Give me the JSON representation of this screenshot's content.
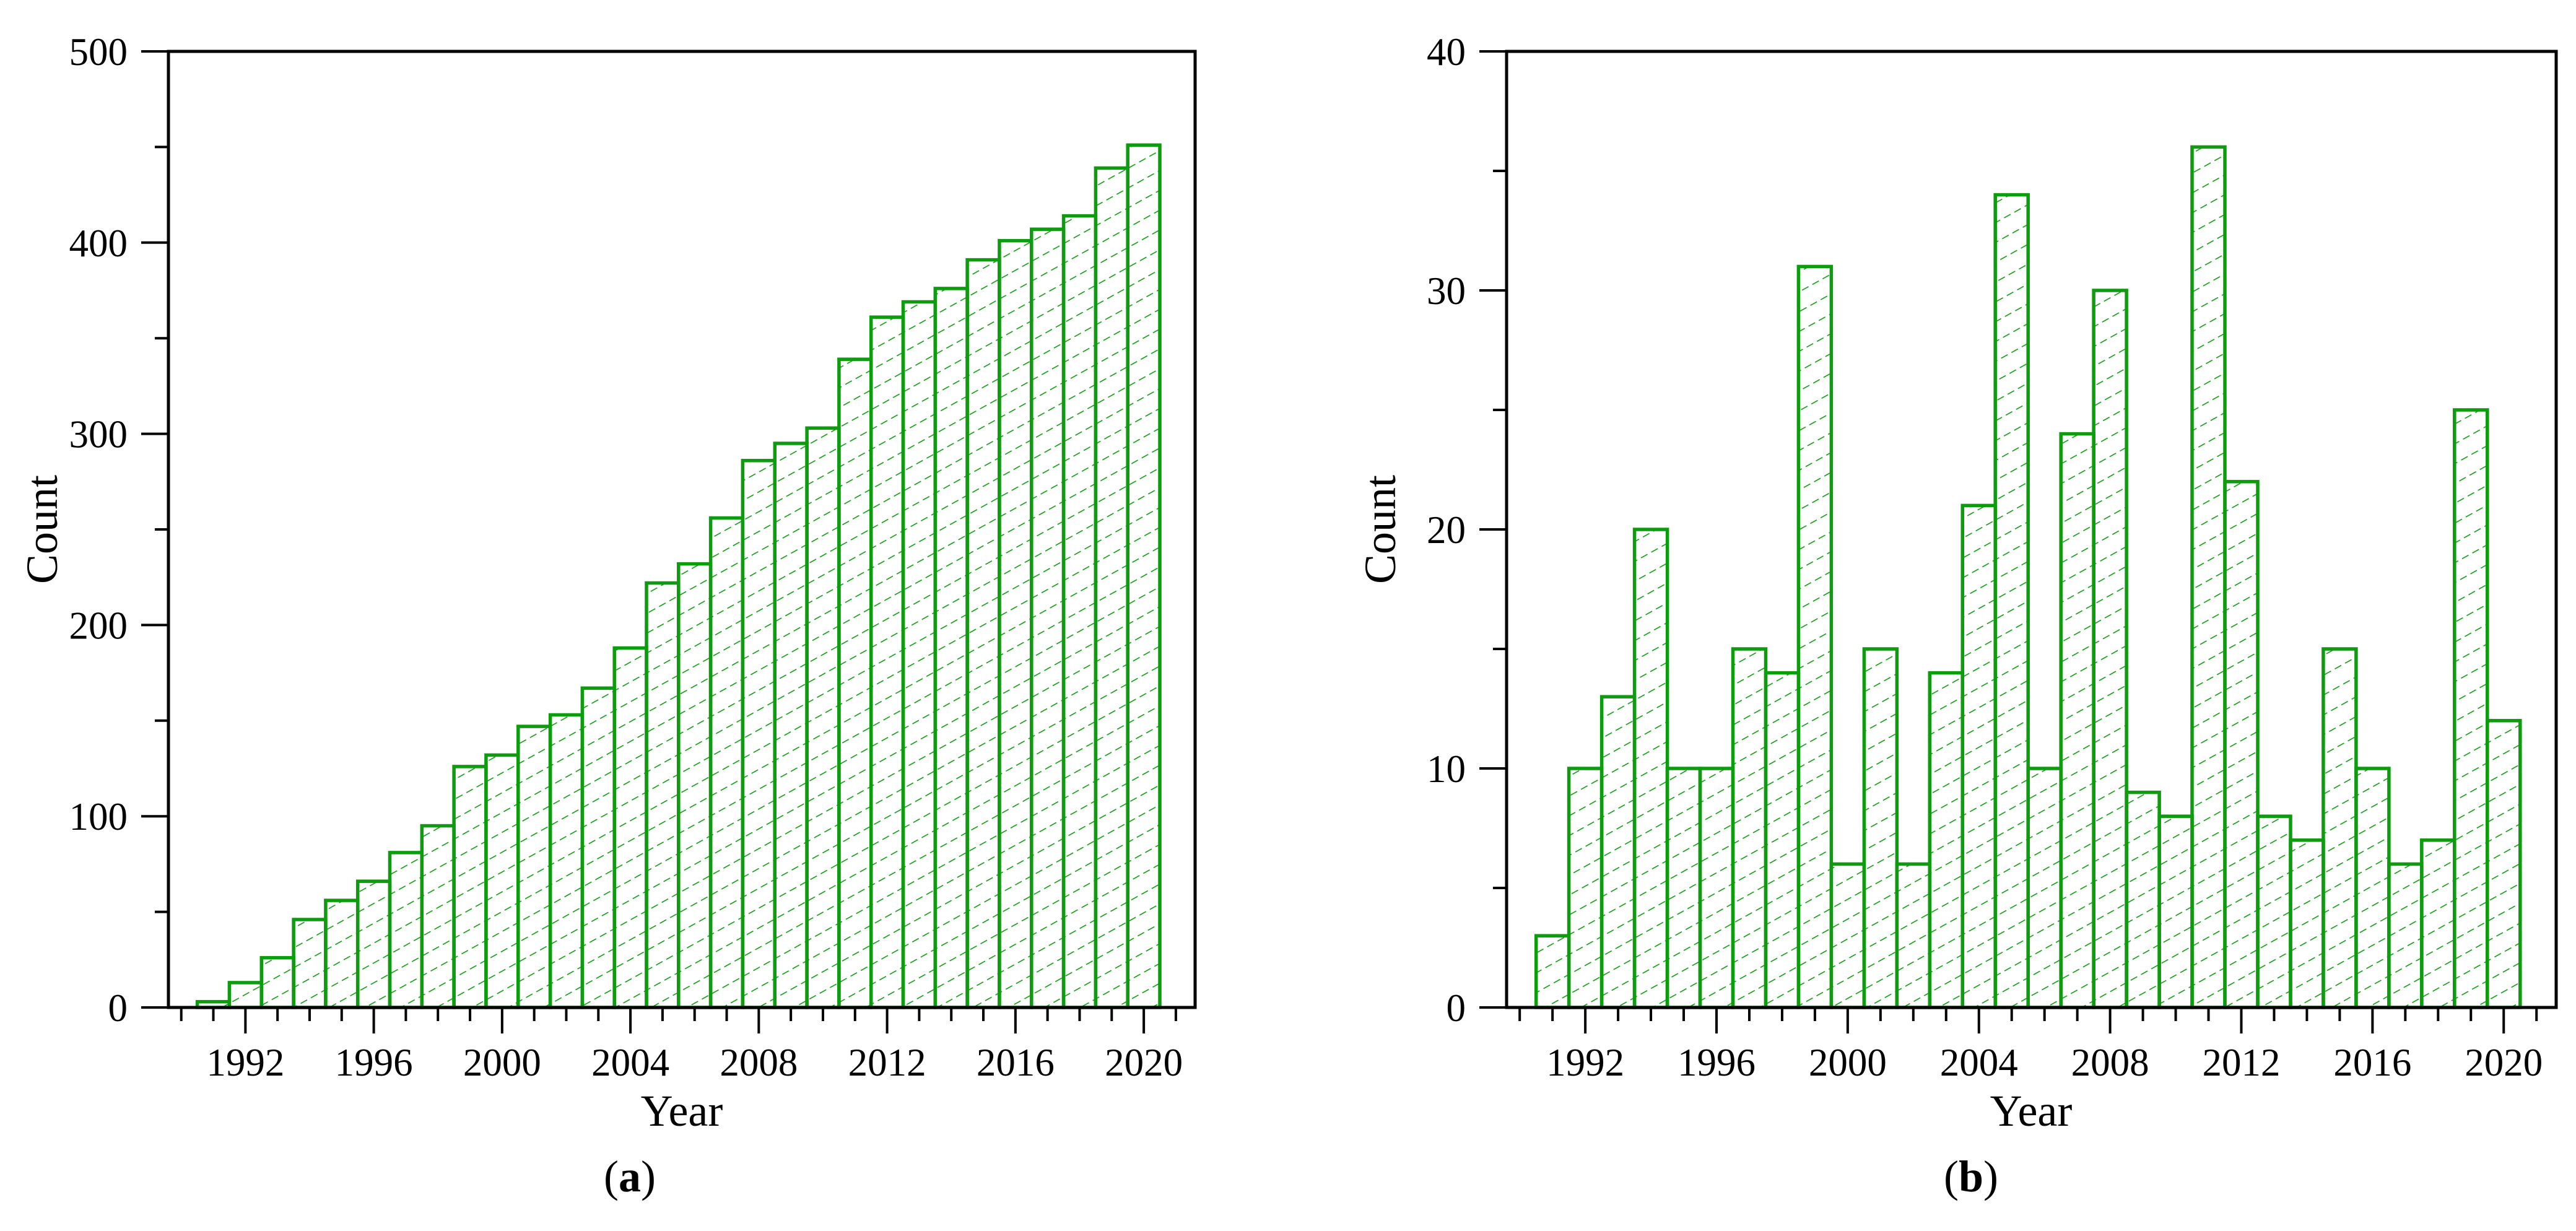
{
  "figure": {
    "background": "#ffffff",
    "axis_color": "#000000",
    "description": "Two-panel bar figure: cumulative and annual publication counts by year"
  },
  "chart_data": [
    {
      "id": "a",
      "type": "bar",
      "panel_label": "(a)",
      "panel_label_parts": {
        "open": "(",
        "letter": "a",
        "close": ")"
      },
      "title": "",
      "xlabel": "Year",
      "ylabel": "Count",
      "categories": [
        1991,
        1992,
        1993,
        1994,
        1995,
        1996,
        1997,
        1998,
        1999,
        2000,
        2001,
        2002,
        2003,
        2004,
        2005,
        2006,
        2007,
        2008,
        2009,
        2010,
        2011,
        2012,
        2013,
        2014,
        2015,
        2016,
        2017,
        2018,
        2019,
        2020
      ],
      "values": [
        3,
        13,
        26,
        46,
        56,
        66,
        81,
        95,
        126,
        132,
        147,
        153,
        167,
        188,
        222,
        232,
        256,
        286,
        295,
        303,
        339,
        361,
        369,
        376,
        391,
        401,
        407,
        414,
        439,
        451
      ],
      "ylim": [
        0,
        500
      ],
      "ytick_values": [
        0,
        100,
        200,
        300,
        400,
        500
      ],
      "ytick_labels": [
        "0",
        "100",
        "200",
        "300",
        "400",
        "500"
      ],
      "ytick_minor_values": [
        50,
        150,
        250,
        350,
        450
      ],
      "xlim": [
        1989.6,
        2021.6
      ],
      "xtick_minor_range": [
        1990,
        2021
      ],
      "xticks_labeled": [
        1992,
        1996,
        2000,
        2004,
        2008,
        2012,
        2016,
        2020
      ],
      "xtick_labels": [
        "1992",
        "1996",
        "2000",
        "2004",
        "2008",
        "2012",
        "2016",
        "2020"
      ],
      "bar_color": "#0d9c0d",
      "hatch": "diagonal-dashed",
      "grid": false,
      "legend": null,
      "description": "Cumulative count of publications per year"
    },
    {
      "id": "b",
      "type": "bar",
      "panel_label": "(b)",
      "panel_label_parts": {
        "open": "(",
        "letter": "b",
        "close": ")"
      },
      "title": "",
      "xlabel": "Year",
      "ylabel": "Count",
      "categories": [
        1991,
        1992,
        1993,
        1994,
        1995,
        1996,
        1997,
        1998,
        1999,
        2000,
        2001,
        2002,
        2003,
        2004,
        2005,
        2006,
        2007,
        2008,
        2009,
        2010,
        2011,
        2012,
        2013,
        2014,
        2015,
        2016,
        2017,
        2018,
        2019,
        2020
      ],
      "values": [
        3,
        10,
        13,
        20,
        10,
        10,
        15,
        14,
        31,
        6,
        15,
        6,
        14,
        21,
        34,
        10,
        24,
        30,
        9,
        8,
        36,
        22,
        8,
        7,
        15,
        10,
        6,
        7,
        25,
        12
      ],
      "ylim": [
        0,
        40
      ],
      "ytick_values": [
        0,
        10,
        20,
        30,
        40
      ],
      "ytick_labels": [
        "0",
        "10",
        "20",
        "30",
        "40"
      ],
      "ytick_minor_values": [
        5,
        15,
        25,
        35
      ],
      "xlim": [
        1989.6,
        2021.6
      ],
      "xtick_minor_range": [
        1990,
        2021
      ],
      "xticks_labeled": [
        1992,
        1996,
        2000,
        2004,
        2008,
        2012,
        2016,
        2020
      ],
      "xtick_labels": [
        "1992",
        "1996",
        "2000",
        "2004",
        "2008",
        "2012",
        "2016",
        "2020"
      ],
      "bar_color": "#0d9c0d",
      "hatch": "diagonal-dashed",
      "grid": false,
      "legend": null,
      "description": "Annual count of publications per year"
    }
  ]
}
